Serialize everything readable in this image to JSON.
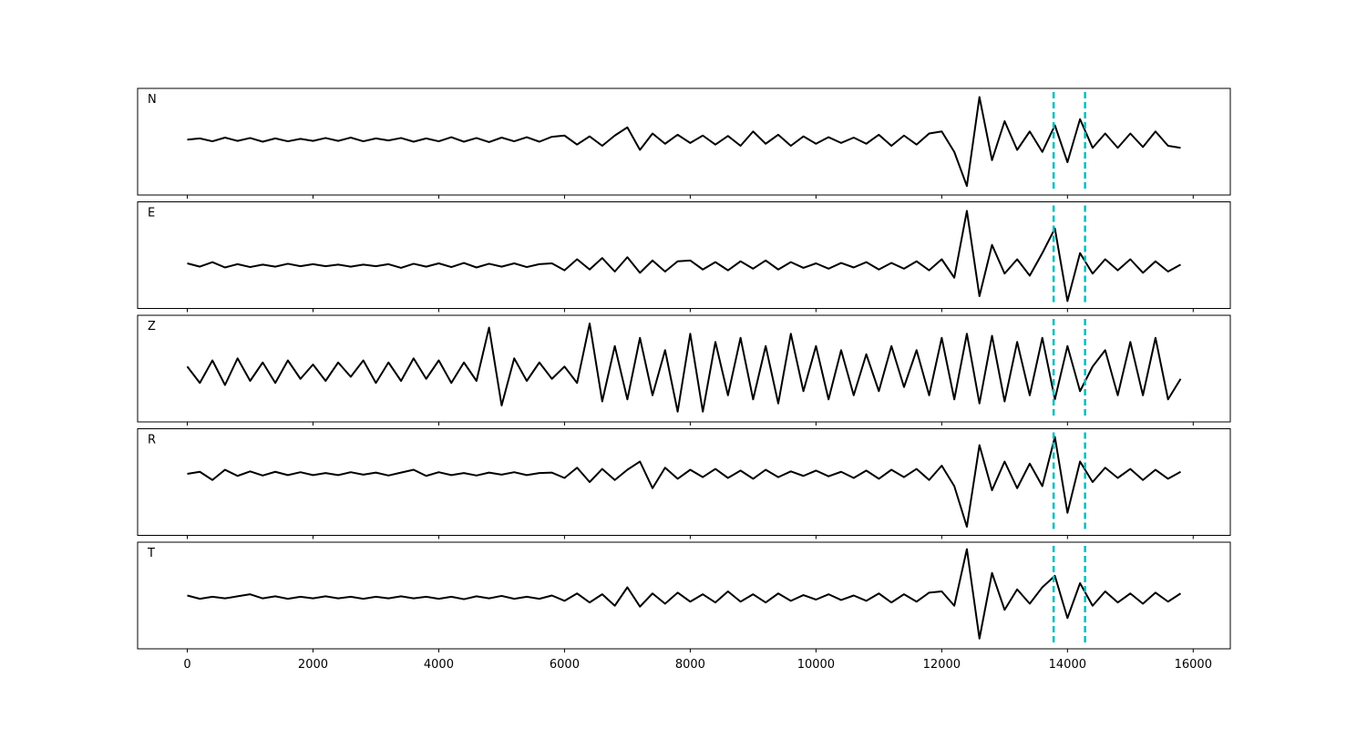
{
  "chart_data": [
    {
      "type": "line",
      "label": "N",
      "color": "#000000",
      "xlim": [
        -790,
        16590
      ],
      "ylim": [
        -1.35,
        1.25
      ],
      "vlines": [
        13780,
        14280
      ],
      "vline_color": "#00bfbf",
      "x": [
        0,
        200,
        400,
        600,
        800,
        1000,
        1200,
        1400,
        1600,
        1800,
        2000,
        2200,
        2400,
        2600,
        2800,
        3000,
        3200,
        3400,
        3600,
        3800,
        4000,
        4200,
        4400,
        4600,
        4800,
        5000,
        5200,
        5400,
        5600,
        5800,
        6000,
        6200,
        6400,
        6600,
        6800,
        7000,
        7200,
        7400,
        7600,
        7800,
        8000,
        8200,
        8400,
        8600,
        8800,
        9000,
        9200,
        9400,
        9600,
        9800,
        10000,
        10200,
        10400,
        10600,
        10800,
        11000,
        11200,
        11400,
        11600,
        11800,
        12000,
        12200,
        12400,
        12600,
        12800,
        13000,
        13200,
        13400,
        13600,
        13800,
        14000,
        14200,
        14400,
        14600,
        14800,
        15000,
        15200,
        15400,
        15600,
        15800
      ],
      "values": [
        0,
        0.03,
        -0.04,
        0.05,
        -0.03,
        0.04,
        -0.05,
        0.03,
        -0.04,
        0.02,
        -0.03,
        0.04,
        -0.03,
        0.05,
        -0.04,
        0.03,
        -0.02,
        0.04,
        -0.05,
        0.03,
        -0.04,
        0.06,
        -0.05,
        0.04,
        -0.06,
        0.05,
        -0.04,
        0.06,
        -0.05,
        0.07,
        0.1,
        -0.12,
        0.08,
        -0.15,
        0.1,
        0.3,
        -0.25,
        0.15,
        -0.1,
        0.12,
        -0.08,
        0.1,
        -0.12,
        0.09,
        -0.15,
        0.2,
        -0.1,
        0.12,
        -0.15,
        0.08,
        -0.1,
        0.06,
        -0.08,
        0.05,
        -0.1,
        0.12,
        -0.15,
        0.1,
        -0.12,
        0.15,
        0.2,
        -0.3,
        -1.13,
        1.04,
        -0.5,
        0.45,
        -0.25,
        0.2,
        -0.3,
        0.35,
        -0.55,
        0.5,
        -0.2,
        0.15,
        -0.2,
        0.15,
        -0.18,
        0.2,
        -0.15,
        -0.2
      ]
    },
    {
      "type": "line",
      "label": "E",
      "color": "#000000",
      "xlim": [
        -790,
        16590
      ],
      "ylim": [
        -1.05,
        1.55
      ],
      "vlines": [
        13780,
        14280
      ],
      "vline_color": "#00bfbf",
      "x": [
        0,
        200,
        400,
        600,
        800,
        1000,
        1200,
        1400,
        1600,
        1800,
        2000,
        2200,
        2400,
        2600,
        2800,
        3000,
        3200,
        3400,
        3600,
        3800,
        4000,
        4200,
        4400,
        4600,
        4800,
        5000,
        5200,
        5400,
        5600,
        5800,
        6000,
        6200,
        6400,
        6600,
        6800,
        7000,
        7200,
        7400,
        7600,
        7800,
        8000,
        8200,
        8400,
        8600,
        8800,
        9000,
        9200,
        9400,
        9600,
        9800,
        10000,
        10200,
        10400,
        10600,
        10800,
        11000,
        11200,
        11400,
        11600,
        11800,
        12000,
        12200,
        12400,
        12600,
        12800,
        13000,
        13200,
        13400,
        13600,
        13800,
        14000,
        14200,
        14400,
        14600,
        14800,
        15000,
        15200,
        15400,
        15600,
        15800
      ],
      "values": [
        0.05,
        -0.03,
        0.08,
        -0.05,
        0.03,
        -0.04,
        0.02,
        -0.03,
        0.04,
        -0.02,
        0.03,
        -0.02,
        0.02,
        -0.03,
        0.02,
        -0.02,
        0.03,
        -0.06,
        0.04,
        -0.03,
        0.05,
        -0.04,
        0.06,
        -0.05,
        0.04,
        -0.03,
        0.05,
        -0.04,
        0.03,
        0.05,
        -0.12,
        0.15,
        -0.1,
        0.18,
        -0.15,
        0.2,
        -0.18,
        0.12,
        -0.15,
        0.1,
        0.12,
        -0.1,
        0.08,
        -0.12,
        0.1,
        -0.08,
        0.12,
        -0.1,
        0.08,
        -0.06,
        0.05,
        -0.08,
        0.06,
        -0.05,
        0.08,
        -0.1,
        0.06,
        -0.08,
        0.1,
        -0.12,
        0.15,
        -0.3,
        1.33,
        -0.75,
        0.5,
        -0.2,
        0.15,
        -0.25,
        0.3,
        0.9,
        -0.87,
        0.3,
        -0.2,
        0.15,
        -0.12,
        0.15,
        -0.18,
        0.1,
        -0.15,
        0.02
      ]
    },
    {
      "type": "line",
      "label": "Z",
      "color": "#000000",
      "xlim": [
        -790,
        16590
      ],
      "ylim": [
        -1.25,
        1.35
      ],
      "vlines": [
        13780,
        14280
      ],
      "vline_color": "#00bfbf",
      "x": [
        0,
        200,
        400,
        600,
        800,
        1000,
        1200,
        1400,
        1600,
        1800,
        2000,
        2200,
        2400,
        2600,
        2800,
        3000,
        3200,
        3400,
        3600,
        3800,
        4000,
        4200,
        4400,
        4600,
        4800,
        5000,
        5200,
        5400,
        5600,
        5800,
        6000,
        6200,
        6400,
        6600,
        6800,
        7000,
        7200,
        7400,
        7600,
        7800,
        8000,
        8200,
        8400,
        8600,
        8800,
        9000,
        9200,
        9400,
        9600,
        9800,
        10000,
        10200,
        10400,
        10600,
        10800,
        11000,
        11200,
        11400,
        11600,
        11800,
        12000,
        12200,
        12400,
        12600,
        12800,
        13000,
        13200,
        13400,
        13600,
        13800,
        14000,
        14200,
        14400,
        14600,
        14800,
        15000,
        15200,
        15400,
        15600,
        15800
      ],
      "values": [
        0.1,
        -0.3,
        0.25,
        -0.35,
        0.3,
        -0.25,
        0.2,
        -0.3,
        0.25,
        -0.2,
        0.15,
        -0.25,
        0.2,
        -0.15,
        0.25,
        -0.3,
        0.2,
        -0.25,
        0.3,
        -0.2,
        0.25,
        -0.3,
        0.2,
        -0.25,
        1.05,
        -0.85,
        0.3,
        -0.25,
        0.2,
        -0.2,
        0.1,
        -0.3,
        1.15,
        -0.75,
        0.6,
        -0.7,
        0.8,
        -0.6,
        0.5,
        -1.0,
        0.9,
        -1.0,
        0.7,
        -0.6,
        0.8,
        -0.7,
        0.6,
        -0.8,
        0.9,
        -0.5,
        0.6,
        -0.7,
        0.5,
        -0.6,
        0.4,
        -0.5,
        0.6,
        -0.4,
        0.5,
        -0.6,
        0.8,
        -0.7,
        0.9,
        -0.8,
        0.85,
        -0.75,
        0.7,
        -0.6,
        0.8,
        -0.7,
        0.6,
        -0.5,
        0.1,
        0.5,
        -0.6,
        0.7,
        -0.6,
        0.8,
        -0.7,
        -0.2
      ]
    },
    {
      "type": "line",
      "label": "R",
      "color": "#000000",
      "xlim": [
        -790,
        16590
      ],
      "ylim": [
        -1.5,
        1.1
      ],
      "vlines": [
        13780,
        14280
      ],
      "vline_color": "#00bfbf",
      "x": [
        0,
        200,
        400,
        600,
        800,
        1000,
        1200,
        1400,
        1600,
        1800,
        2000,
        2200,
        2400,
        2600,
        2800,
        3000,
        3200,
        3400,
        3600,
        3800,
        4000,
        4200,
        4400,
        4600,
        4800,
        5000,
        5200,
        5400,
        5600,
        5800,
        6000,
        6200,
        6400,
        6600,
        6800,
        7000,
        7200,
        7400,
        7600,
        7800,
        8000,
        8200,
        8400,
        8600,
        8800,
        9000,
        9200,
        9400,
        9600,
        9800,
        10000,
        10200,
        10400,
        10600,
        10800,
        11000,
        11200,
        11400,
        11600,
        11800,
        12000,
        12200,
        12400,
        12600,
        12800,
        13000,
        13200,
        13400,
        13600,
        13800,
        14000,
        14200,
        14400,
        14600,
        14800,
        15000,
        15200,
        15400,
        15600,
        15800
      ],
      "values": [
        0.0,
        0.05,
        -0.15,
        0.1,
        -0.05,
        0.06,
        -0.04,
        0.05,
        -0.03,
        0.04,
        -0.03,
        0.02,
        -0.03,
        0.04,
        -0.02,
        0.03,
        -0.04,
        0.03,
        0.1,
        -0.05,
        0.04,
        -0.03,
        0.02,
        -0.04,
        0.03,
        -0.02,
        0.04,
        -0.03,
        0.02,
        0.03,
        -0.1,
        0.15,
        -0.2,
        0.12,
        -0.15,
        0.1,
        0.3,
        -0.35,
        0.15,
        -0.12,
        0.1,
        -0.08,
        0.12,
        -0.1,
        0.08,
        -0.12,
        0.1,
        -0.08,
        0.06,
        -0.05,
        0.08,
        -0.06,
        0.05,
        -0.1,
        0.08,
        -0.12,
        0.1,
        -0.08,
        0.12,
        -0.15,
        0.2,
        -0.3,
        -1.29,
        0.7,
        -0.4,
        0.3,
        -0.35,
        0.25,
        -0.3,
        0.9,
        -0.95,
        0.3,
        -0.2,
        0.15,
        -0.1,
        0.12,
        -0.15,
        0.1,
        -0.12,
        0.05
      ]
    },
    {
      "type": "line",
      "label": "T",
      "color": "#000000",
      "xlim": [
        -790,
        16590
      ],
      "ylim": [
        -1.25,
        1.35
      ],
      "vlines": [
        13780,
        14280
      ],
      "vline_color": "#00bfbf",
      "xticks": [
        0,
        2000,
        4000,
        6000,
        8000,
        10000,
        12000,
        14000,
        16000
      ],
      "x": [
        0,
        200,
        400,
        600,
        800,
        1000,
        1200,
        1400,
        1600,
        1800,
        2000,
        2200,
        2400,
        2600,
        2800,
        3000,
        3200,
        3400,
        3600,
        3800,
        4000,
        4200,
        4400,
        4600,
        4800,
        5000,
        5200,
        5400,
        5600,
        5800,
        6000,
        6200,
        6400,
        6600,
        6800,
        7000,
        7200,
        7400,
        7600,
        7800,
        8000,
        8200,
        8400,
        8600,
        8800,
        9000,
        9200,
        9400,
        9600,
        9800,
        10000,
        10200,
        10400,
        10600,
        10800,
        11000,
        11200,
        11400,
        11600,
        11800,
        12000,
        12200,
        12400,
        12600,
        12800,
        13000,
        13200,
        13400,
        13600,
        13800,
        14000,
        14200,
        14400,
        14600,
        14800,
        15000,
        15200,
        15400,
        15600,
        15800
      ],
      "values": [
        0.05,
        -0.03,
        0.02,
        -0.02,
        0.03,
        0.08,
        -0.02,
        0.03,
        -0.03,
        0.02,
        -0.02,
        0.03,
        -0.02,
        0.02,
        -0.03,
        0.02,
        -0.02,
        0.03,
        -0.02,
        0.02,
        -0.03,
        0.02,
        -0.04,
        0.03,
        -0.02,
        0.04,
        -0.03,
        0.02,
        -0.03,
        0.05,
        -0.08,
        0.1,
        -0.12,
        0.08,
        -0.2,
        0.25,
        -0.22,
        0.1,
        -0.15,
        0.12,
        -0.1,
        0.08,
        -0.12,
        0.15,
        -0.1,
        0.08,
        -0.12,
        0.1,
        -0.08,
        0.06,
        -0.05,
        0.08,
        -0.06,
        0.05,
        -0.08,
        0.1,
        -0.12,
        0.08,
        -0.1,
        0.12,
        0.15,
        -0.2,
        1.18,
        -1.0,
        0.6,
        -0.3,
        0.2,
        -0.15,
        0.25,
        0.53,
        -0.5,
        0.35,
        -0.2,
        0.15,
        -0.12,
        0.1,
        -0.15,
        0.12,
        -0.1,
        0.1
      ]
    }
  ]
}
